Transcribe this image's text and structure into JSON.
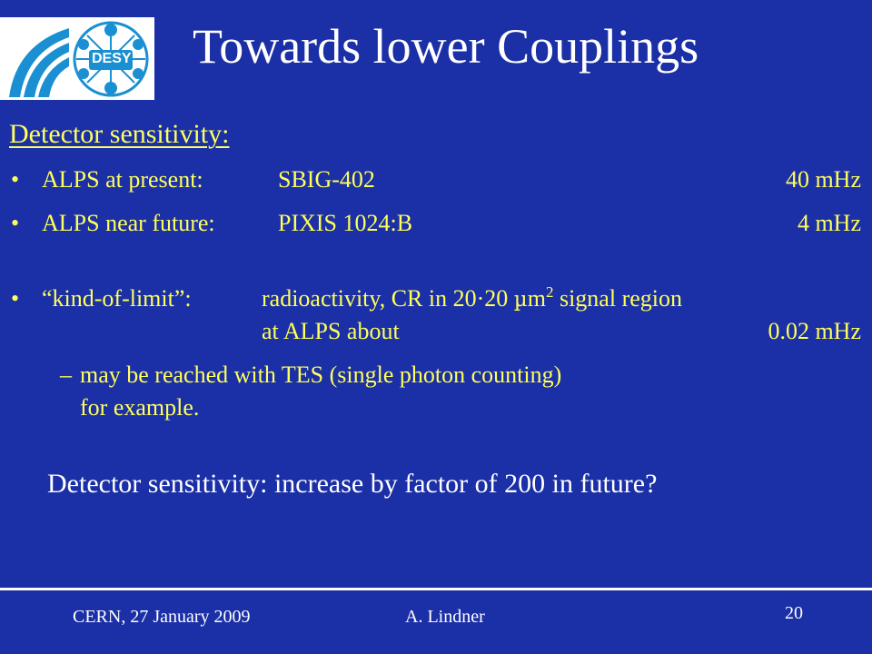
{
  "slide": {
    "title": "Towards lower Couplings",
    "logo_text": "DESY",
    "heading": "Detector sensitivity:",
    "bullets": [
      {
        "label": "ALPS at present:",
        "detector": "SBIG-402",
        "value": "40 mHz"
      },
      {
        "label": "ALPS near future:",
        "detector": "PIXIS 1024:B",
        "value": "4 mHz"
      }
    ],
    "limit": {
      "label": "“kind-of-limit”:",
      "text_before_mu": "radioactivity, CR in 20·20 ",
      "mu": "µ",
      "unit": "m",
      "exponent": "2",
      "text_after": " signal region",
      "line2": "at ALPS about",
      "value": "0.02 mHz"
    },
    "sub_bullet": {
      "dash": "–",
      "line1": "may be reached with TES (single photon counting)",
      "line2": "for example."
    },
    "conclusion": "Detector sensitivity: increase by factor of  200 in future?",
    "bullet_char": "•"
  },
  "footer": {
    "venue_date": "CERN, 27 January 2009",
    "author": "A. Lindner",
    "page": "20"
  },
  "colors": {
    "background": "#1b2fa6",
    "title": "#ffffff",
    "body_text": "#ffff5a",
    "logo_blue": "#1a8fd1"
  }
}
